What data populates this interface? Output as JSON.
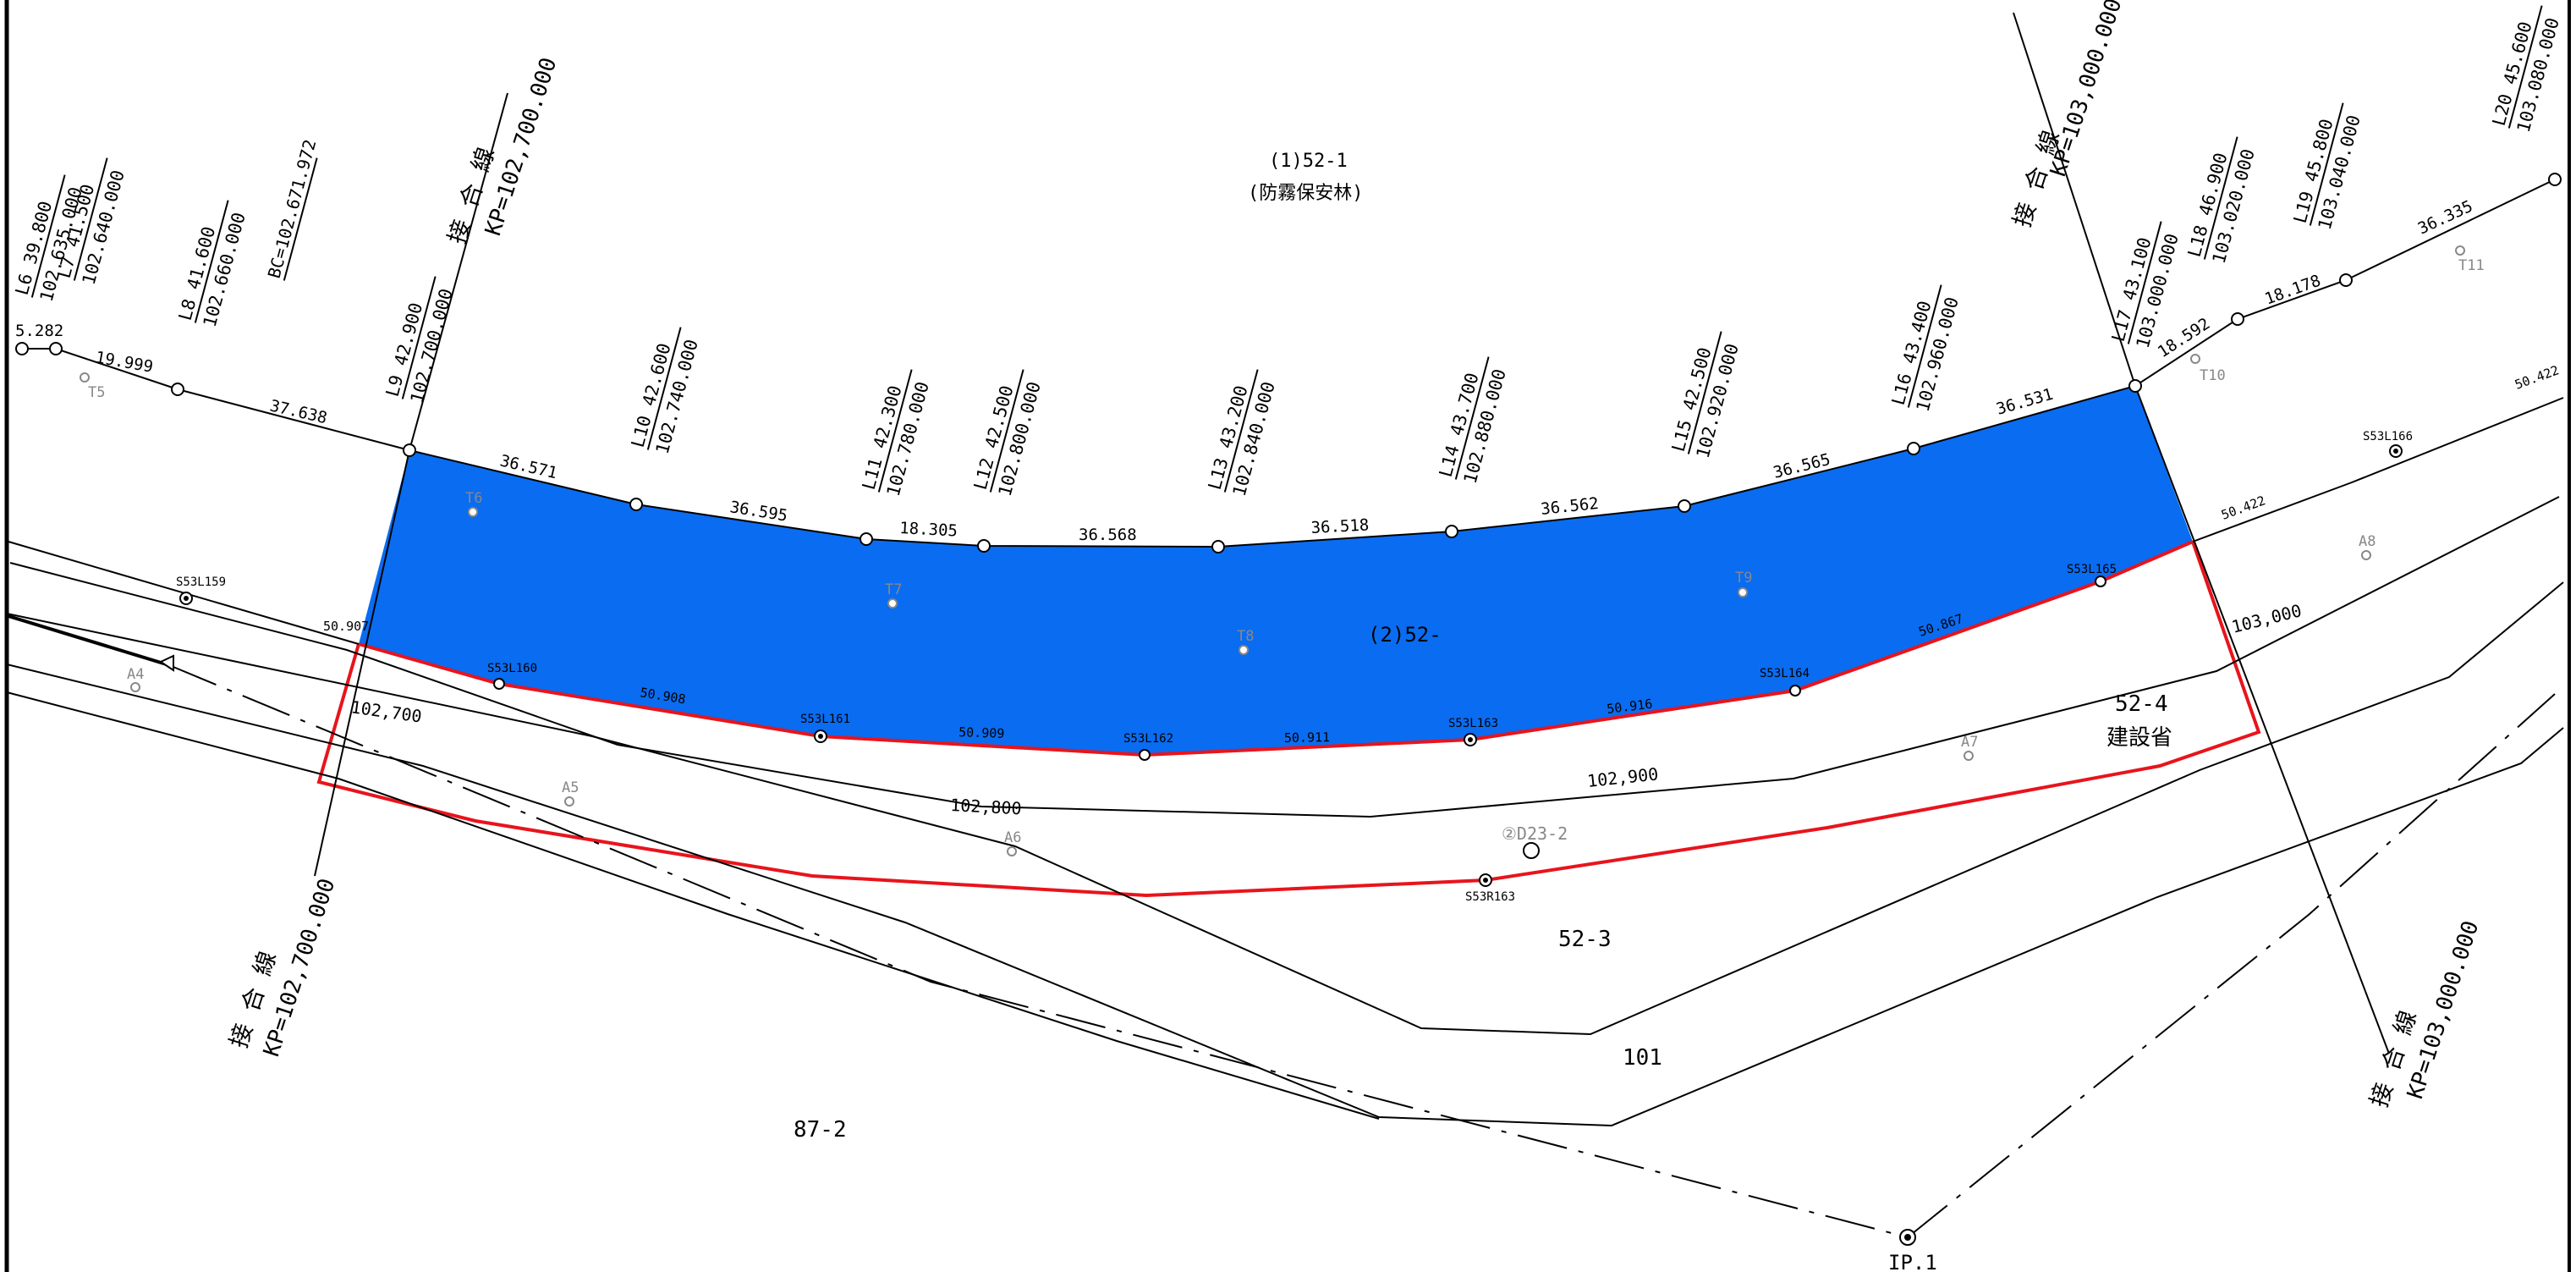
{
  "colors": {
    "parcel_fill": "#0a6cf0",
    "boundary": "#e8141c",
    "line": "#000000",
    "faint": "#888888"
  },
  "parcels": {
    "p52_1": "(1)52-1",
    "p52_1_note": "(防霧保安林)",
    "p52_2": "(2)52-",
    "p52_3": "52-3",
    "p52_4": "52-4",
    "p52_4_owner": "建設省",
    "p101": "101",
    "p87_2": "87-2"
  },
  "junctions": {
    "left_top_title": "接 合 線",
    "left_top_kp": "KP=102,700.000",
    "left_bottom_title": "接 合 線",
    "left_bottom_kp": "KP=102,700.000",
    "right_top_title": "接 合 線",
    "right_top_kp": "KP=103,000.000",
    "right_bottom_title": "接 合 線",
    "right_bottom_kp": "KP=103,000.000"
  },
  "stations": [
    {
      "id": "L6",
      "v1": "39.800",
      "v2": "102.635.000"
    },
    {
      "id": "L7",
      "v1": "41.500",
      "v2": "102.640.000"
    },
    {
      "id": "L8",
      "v1": "41.600",
      "v2": "102.660.000"
    },
    {
      "id": "BC",
      "v1": "BC=102.671.972",
      "v2": ""
    },
    {
      "id": "L9",
      "v1": "42.900",
      "v2": "102.700.000"
    },
    {
      "id": "L10",
      "v1": "42.600",
      "v2": "102.740.000"
    },
    {
      "id": "L11",
      "v1": "42.300",
      "v2": "102.780.000"
    },
    {
      "id": "L12",
      "v1": "42.500",
      "v2": "102.800.000"
    },
    {
      "id": "L13",
      "v1": "43.200",
      "v2": "102.840.000"
    },
    {
      "id": "L14",
      "v1": "43.700",
      "v2": "102.880.000"
    },
    {
      "id": "L15",
      "v1": "42.500",
      "v2": "102.920.000"
    },
    {
      "id": "L16",
      "v1": "43.400",
      "v2": "102.960.000"
    },
    {
      "id": "L17",
      "v1": "43.100",
      "v2": "103.000.000"
    },
    {
      "id": "L18",
      "v1": "46.900",
      "v2": "103.020.000"
    },
    {
      "id": "L19",
      "v1": "45.800",
      "v2": "103.040.000"
    },
    {
      "id": "L20",
      "v1": "45.600",
      "v2": "103.080.000"
    }
  ],
  "top_distances": [
    "5.282",
    "19.999",
    "37.638",
    "36.571",
    "36.595",
    "18.305",
    "36.568",
    "36.518",
    "36.562",
    "36.565",
    "36.531",
    "18.592",
    "18.178",
    "36.335"
  ],
  "bottom_distances": [
    "50.907",
    "50.908",
    "50.909",
    "50.911",
    "50.916",
    "50.867",
    "50.422",
    "50.422"
  ],
  "points": {
    "s159": "S53L159",
    "s160": "S53L160",
    "s161": "S53L161",
    "s162": "S53L162",
    "s163": "S53L163",
    "s164": "S53L164",
    "s165": "S53L165",
    "s166": "S53L166",
    "r163": "S53R163",
    "d23": "②D23-2",
    "ip1": "IP.1"
  },
  "markers": {
    "T5": "T5",
    "T6": "T6",
    "T7": "T7",
    "T8": "T8",
    "T9": "T9",
    "T10": "T10",
    "T11": "T11",
    "A4": "A4",
    "A5": "A5",
    "A6": "A6",
    "A7": "A7",
    "A8": "A8"
  },
  "chainage": {
    "c102700": "102,700",
    "c102800": "102,800",
    "c102900": "102,900",
    "c103000": "103,000"
  }
}
